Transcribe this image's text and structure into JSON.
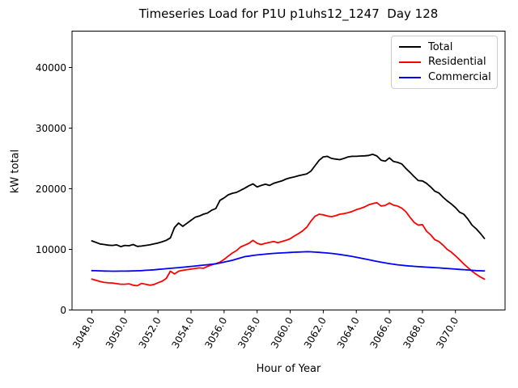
{
  "chart_data": {
    "type": "line",
    "title": "Timeseries Load for P1U p1uhs12_1247  Day 128",
    "xlabel": "Hour of Year",
    "ylabel": "kW total",
    "xlim": [
      3046.8,
      3073.0
    ],
    "ylim": [
      0,
      46000
    ],
    "grid": false,
    "legend_position": "upper right",
    "x_tick_rotation_deg": 60,
    "x_tick_values": [
      3048,
      3050,
      3052,
      3054,
      3056,
      3058,
      3060,
      3062,
      3064,
      3066,
      3068,
      3070
    ],
    "x_tick_labels": [
      "3048.0",
      "3050.0",
      "3052.0",
      "3054.0",
      "3056.0",
      "3058.0",
      "3060.0",
      "3062.0",
      "3064.0",
      "3066.0",
      "3068.0",
      "3070.0"
    ],
    "y_tick_values": [
      0,
      10000,
      20000,
      30000,
      40000
    ],
    "y_tick_labels": [
      "0",
      "10000",
      "20000",
      "30000",
      "40000"
    ],
    "x": [
      3048.0,
      3048.25,
      3048.5,
      3048.75,
      3049.0,
      3049.25,
      3049.5,
      3049.75,
      3050.0,
      3050.25,
      3050.5,
      3050.75,
      3051.0,
      3051.25,
      3051.5,
      3051.75,
      3052.0,
      3052.25,
      3052.5,
      3052.75,
      3053.0,
      3053.25,
      3053.5,
      3053.75,
      3054.0,
      3054.25,
      3054.5,
      3054.75,
      3055.0,
      3055.25,
      3055.5,
      3055.75,
      3056.0,
      3056.25,
      3056.5,
      3056.75,
      3057.0,
      3057.25,
      3057.5,
      3057.75,
      3058.0,
      3058.25,
      3058.5,
      3058.75,
      3059.0,
      3059.25,
      3059.5,
      3059.75,
      3060.0,
      3060.25,
      3060.5,
      3060.75,
      3061.0,
      3061.25,
      3061.5,
      3061.75,
      3062.0,
      3062.25,
      3062.5,
      3062.75,
      3063.0,
      3063.25,
      3063.5,
      3063.75,
      3064.0,
      3064.25,
      3064.5,
      3064.75,
      3065.0,
      3065.25,
      3065.5,
      3065.75,
      3066.0,
      3066.25,
      3066.5,
      3066.75,
      3067.0,
      3067.25,
      3067.5,
      3067.75,
      3068.0,
      3068.25,
      3068.5,
      3068.75,
      3069.0,
      3069.25,
      3069.5,
      3069.75,
      3070.0,
      3070.25,
      3070.5,
      3070.75,
      3071.0,
      3071.25,
      3071.5,
      3071.75
    ],
    "series": [
      {
        "name": "Total",
        "color": "#000000",
        "values": [
          11400,
          11150,
          10900,
          10800,
          10700,
          10650,
          10750,
          10450,
          10650,
          10600,
          10800,
          10500,
          10550,
          10650,
          10750,
          10900,
          11050,
          11250,
          11500,
          11900,
          13600,
          14350,
          13800,
          14300,
          14800,
          15300,
          15500,
          15800,
          16000,
          16450,
          16750,
          18100,
          18500,
          19000,
          19250,
          19400,
          19750,
          20100,
          20500,
          20800,
          20300,
          20550,
          20750,
          20550,
          20900,
          21100,
          21300,
          21600,
          21800,
          21950,
          22150,
          22300,
          22450,
          22900,
          23800,
          24700,
          25250,
          25350,
          25000,
          24900,
          24800,
          25000,
          25250,
          25350,
          25350,
          25400,
          25420,
          25500,
          25680,
          25400,
          24700,
          24550,
          25100,
          24500,
          24350,
          24100,
          23350,
          22700,
          22000,
          21350,
          21300,
          20900,
          20300,
          19600,
          19300,
          18600,
          18000,
          17500,
          16900,
          16150,
          15800,
          15000,
          14000,
          13400,
          12650,
          11800
        ]
      },
      {
        "name": "Residential",
        "color": "#ff0000",
        "values": [
          5100,
          4900,
          4700,
          4550,
          4480,
          4450,
          4350,
          4250,
          4250,
          4320,
          4100,
          4000,
          4380,
          4250,
          4100,
          4200,
          4500,
          4750,
          5200,
          6400,
          5950,
          6400,
          6550,
          6650,
          6750,
          6850,
          6950,
          6880,
          7200,
          7450,
          7650,
          7900,
          8350,
          8900,
          9400,
          9800,
          10400,
          10700,
          11000,
          11500,
          11000,
          10800,
          11000,
          11150,
          11300,
          11100,
          11300,
          11500,
          11750,
          12200,
          12600,
          13050,
          13650,
          14650,
          15450,
          15800,
          15700,
          15500,
          15400,
          15550,
          15800,
          15900,
          16050,
          16250,
          16550,
          16750,
          17000,
          17350,
          17550,
          17700,
          17150,
          17250,
          17650,
          17300,
          17150,
          16800,
          16200,
          15300,
          14450,
          14000,
          14100,
          13000,
          12400,
          11600,
          11300,
          10700,
          10000,
          9550,
          8950,
          8300,
          7600,
          7000,
          6400,
          5900,
          5450,
          5100
        ]
      },
      {
        "name": "Commercial",
        "color": "#0000ff",
        "values": [
          6500,
          6480,
          6450,
          6430,
          6410,
          6400,
          6400,
          6410,
          6420,
          6430,
          6450,
          6470,
          6500,
          6540,
          6580,
          6630,
          6690,
          6750,
          6810,
          6870,
          6930,
          6990,
          7050,
          7120,
          7190,
          7260,
          7330,
          7400,
          7470,
          7540,
          7620,
          7750,
          7900,
          8050,
          8200,
          8400,
          8600,
          8800,
          8900,
          9000,
          9080,
          9150,
          9220,
          9280,
          9330,
          9380,
          9420,
          9460,
          9500,
          9530,
          9560,
          9590,
          9620,
          9600,
          9550,
          9510,
          9460,
          9400,
          9330,
          9250,
          9160,
          9060,
          8950,
          8830,
          8700,
          8570,
          8430,
          8290,
          8150,
          8010,
          7880,
          7760,
          7650,
          7550,
          7460,
          7380,
          7310,
          7250,
          7200,
          7150,
          7110,
          7070,
          7030,
          6990,
          6950,
          6900,
          6850,
          6800,
          6750,
          6700,
          6650,
          6600,
          6550,
          6500,
          6470,
          6450
        ]
      }
    ]
  }
}
